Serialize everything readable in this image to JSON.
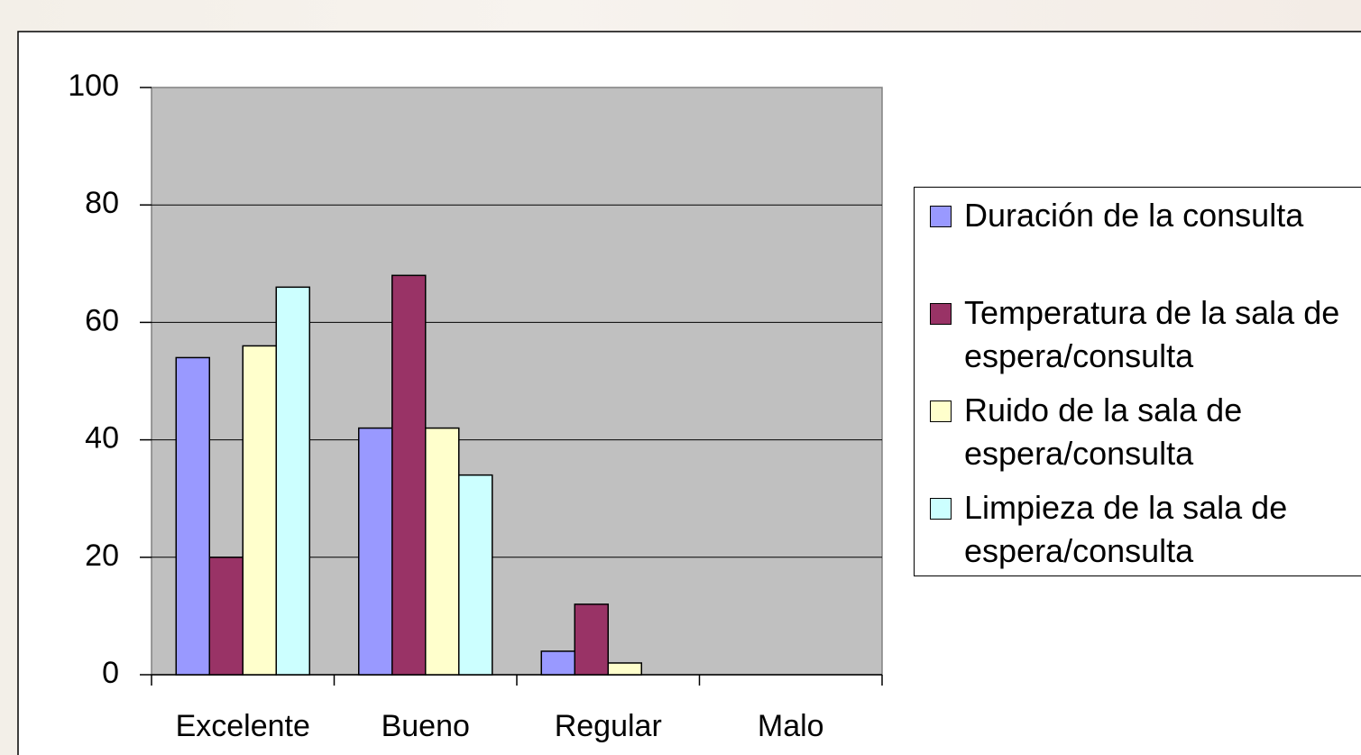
{
  "chart_data": {
    "type": "bar",
    "categories": [
      "Excelente",
      "Bueno",
      "Regular",
      "Malo"
    ],
    "series": [
      {
        "name": "Duración de la consulta",
        "color": "#9999ff",
        "values": [
          54,
          42,
          4,
          0
        ]
      },
      {
        "name": "Temperatura de la sala de espera/consulta",
        "color": "#993366",
        "values": [
          20,
          68,
          12,
          0
        ]
      },
      {
        "name": "Ruido de la sala de espera/consulta",
        "color": "#ffffcc",
        "values": [
          56,
          42,
          2,
          0
        ]
      },
      {
        "name": "Limpieza de la sala de espera/consulta",
        "color": "#ccffff",
        "values": [
          66,
          34,
          0,
          0
        ]
      }
    ],
    "ylim": [
      0,
      100
    ],
    "yticks": [
      0,
      20,
      40,
      60,
      80,
      100
    ],
    "grid": true,
    "legend": "right"
  }
}
